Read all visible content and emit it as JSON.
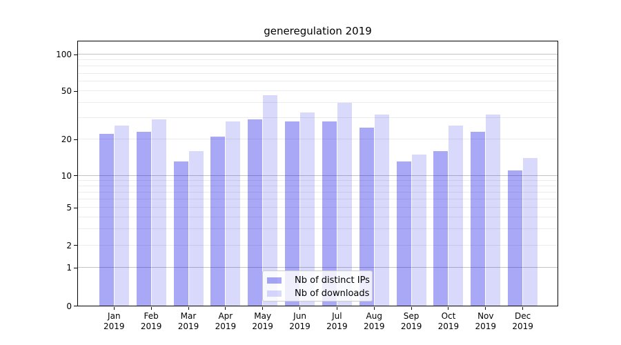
{
  "title": "generegulation 2019",
  "chart_data": {
    "type": "bar",
    "title": "generegulation 2019",
    "categories": [
      "Jan 2019",
      "Feb 2019",
      "Mar 2019",
      "Apr 2019",
      "May 2019",
      "Jun 2019",
      "Jul 2019",
      "Aug 2019",
      "Sep 2019",
      "Oct 2019",
      "Nov 2019",
      "Dec 2019"
    ],
    "series": [
      {
        "name": "Nb of distinct IPs",
        "color": "rgba(0,0,230,0.34)",
        "values": [
          22,
          23,
          13,
          21,
          29,
          28,
          28,
          25,
          13,
          16,
          23,
          11
        ]
      },
      {
        "name": "Nb of downloads",
        "color": "rgba(0,0,237,0.15)",
        "values": [
          26,
          29,
          16,
          28,
          46,
          33,
          40,
          32,
          15,
          26,
          32,
          14
        ]
      }
    ],
    "yscale": "symlog",
    "yticks": [
      0,
      1,
      2,
      5,
      10,
      20,
      50,
      100
    ],
    "minor_gridlines": [
      2,
      3,
      4,
      5,
      6,
      7,
      8,
      9,
      20,
      30,
      40,
      50,
      60,
      70,
      80,
      90
    ],
    "major_gridlines": [
      1,
      10,
      100
    ],
    "ylim": [
      0,
      130
    ],
    "grid": true,
    "legend_position": "lower center",
    "background_color": "#ffffff",
    "text_color": "#000000"
  }
}
